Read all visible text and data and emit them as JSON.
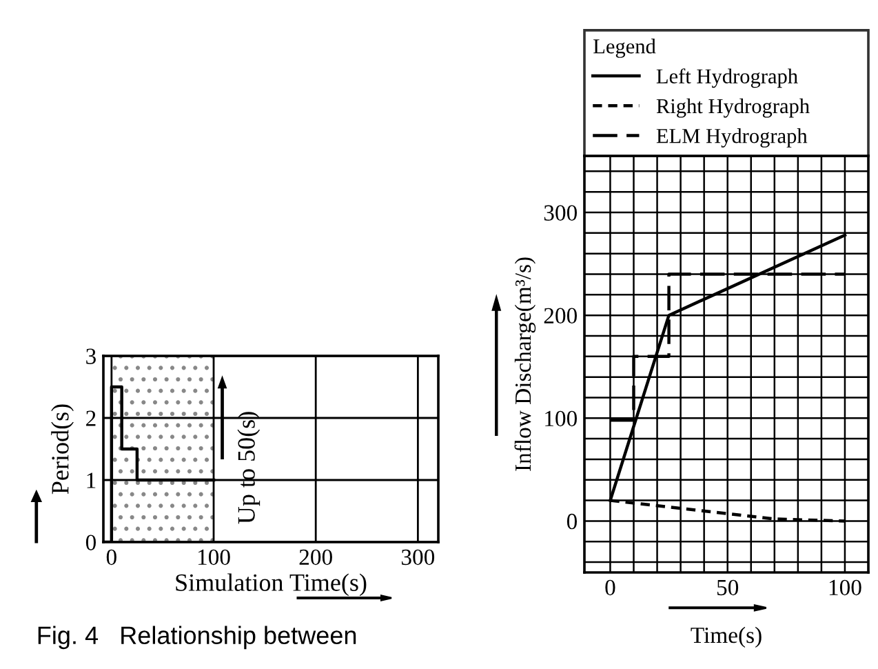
{
  "chart_data": [
    {
      "type": "line",
      "xlabel": "Simulation Time(s)",
      "ylabel": "Period(s)",
      "series": [
        {
          "color": "#000000",
          "x": [
            -8,
            0,
            0,
            10,
            10,
            25,
            25,
            100
          ],
          "values": [
            0,
            0,
            2.5,
            2.5,
            1.5,
            1.5,
            1,
            1
          ]
        }
      ],
      "xlim": [
        -8,
        320
      ],
      "xticks": [
        0,
        100,
        200,
        300
      ],
      "ylim": [
        0,
        3
      ],
      "yticks": [
        0,
        1,
        2,
        3
      ],
      "grid": true,
      "line_style": "solid",
      "marker": "none",
      "bands": [
        {
          "axis": "x",
          "from": 0,
          "to": 100,
          "color": "#888888"
        }
      ],
      "annotations": [
        "Up to 50(s)",
        "Fig. 4   Relationship between"
      ]
    },
    {
      "type": "line",
      "xlabel": "Time(s)",
      "ylabel": "Inflow Discharge(m³/s)",
      "legend_title": "Legend",
      "legend": "top",
      "series": [
        {
          "name": "Left Hydrograph",
          "color": "#000000",
          "line_style": "solid",
          "x": [
            0,
            25,
            100
          ],
          "values": [
            20,
            200,
            278
          ]
        },
        {
          "name": "Right Hydrograph",
          "color": "#000000",
          "line_style": "dotted",
          "x": [
            0,
            70,
            100
          ],
          "values": [
            20,
            2,
            0
          ]
        },
        {
          "name": "ELM Hydrograph",
          "color": "#000000",
          "line_style": "dashed",
          "x": [
            0,
            10,
            10,
            25,
            25,
            100
          ],
          "values": [
            98,
            98,
            160,
            160,
            240,
            240
          ]
        }
      ],
      "xlim": [
        -11,
        110
      ],
      "xticks": [
        0,
        {
          "value": 10,
          "label": null
        },
        {
          "value": 20,
          "label": null
        },
        {
          "value": 30,
          "label": null
        },
        {
          "value": 40,
          "label": null
        },
        50,
        {
          "value": 60,
          "label": null
        },
        {
          "value": 70,
          "label": null
        },
        {
          "value": 80,
          "label": null
        },
        {
          "value": 90,
          "label": null
        },
        100
      ],
      "ylim": [
        -50,
        355
      ],
      "yticks": [
        {
          "value": -40,
          "label": null
        },
        {
          "value": -20,
          "label": null
        },
        0,
        {
          "value": 20,
          "label": null
        },
        {
          "value": 40,
          "label": null
        },
        {
          "value": 60,
          "label": null
        },
        {
          "value": 80,
          "label": null
        },
        100,
        {
          "value": 120,
          "label": null
        },
        {
          "value": 140,
          "label": null
        },
        {
          "value": 160,
          "label": null
        },
        {
          "value": 180,
          "label": null
        },
        200,
        {
          "value": 220,
          "label": null
        },
        {
          "value": 240,
          "label": null
        },
        {
          "value": 260,
          "label": null
        },
        {
          "value": 280,
          "label": null
        },
        300,
        {
          "value": 320,
          "label": null
        },
        {
          "value": 340,
          "label": null
        }
      ],
      "grid": true,
      "marker": "none"
    }
  ]
}
